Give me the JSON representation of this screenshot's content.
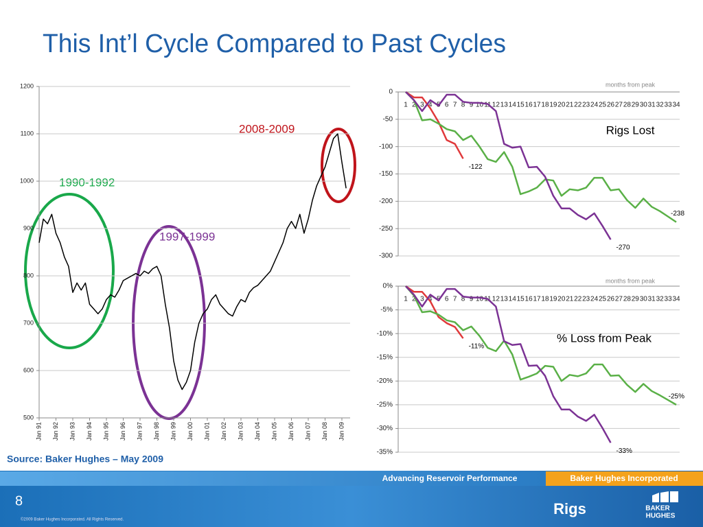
{
  "title": "This Int’l Cycle Compared to Past Cycles",
  "source": "Source: Baker Hughes – May 2009",
  "footer": {
    "tagline": "Advancing Reservoir Performance",
    "company": "Baker Hughes Incorporated",
    "slide_number": "8",
    "copyright": "©2009 Baker Hughes Incorporated. All Rights Reserved.",
    "section": "Rigs",
    "logo": [
      "BAKER",
      "HUGHES"
    ]
  },
  "chart_data": [
    {
      "type": "line",
      "annotations": [
        "1990-1992",
        "1997-1999",
        "2008-2009"
      ],
      "categories": [
        "Jan 91",
        null,
        null,
        null,
        "Jan 92",
        null,
        null,
        null,
        "Jan 93",
        null,
        null,
        null,
        "Jan 94",
        null,
        null,
        null,
        "Jan 95",
        null,
        null,
        null,
        "Jan 96",
        null,
        null,
        null,
        "Jan 97",
        null,
        null,
        null,
        "Jan 98",
        null,
        null,
        null,
        "Jan 99",
        null,
        null,
        null,
        "Jan 00",
        null,
        null,
        null,
        "Jan 01",
        null,
        null,
        null,
        "Jan 02",
        null,
        null,
        null,
        "Jan 03",
        null,
        null,
        null,
        "Jan 04",
        null,
        null,
        null,
        "Jan 05",
        null,
        null,
        null,
        "Jan 06",
        null,
        null,
        null,
        "Jan 07",
        null,
        null,
        null,
        "Jan 08",
        null,
        null,
        null,
        "Jan 09",
        null
      ],
      "series": [
        {
          "color": "#000000",
          "values": [
            870,
            920,
            910,
            930,
            890,
            870,
            840,
            820,
            765,
            785,
            770,
            785,
            740,
            730,
            720,
            730,
            750,
            760,
            755,
            770,
            790,
            795,
            800,
            805,
            800,
            810,
            805,
            815,
            820,
            800,
            740,
            690,
            620,
            580,
            560,
            575,
            600,
            660,
            700,
            720,
            730,
            750,
            760,
            740,
            730,
            720,
            715,
            735,
            750,
            745,
            765,
            775,
            780,
            790,
            800,
            810,
            830,
            850,
            870,
            900,
            915,
            900,
            930,
            890,
            920,
            960,
            990,
            1010,
            1030,
            1060,
            1090,
            1100,
            1040,
            985
          ]
        }
      ],
      "ylim": [
        500,
        1200
      ],
      "yticks": [
        500,
        600,
        700,
        800,
        900,
        1000,
        1100,
        1200
      ],
      "grid": true
    },
    {
      "type": "line",
      "title": "Rigs Lost",
      "x_label": "months from peak",
      "categories": [
        1,
        2,
        3,
        4,
        5,
        6,
        7,
        8,
        9,
        10,
        11,
        12,
        13,
        14,
        15,
        16,
        17,
        18,
        19,
        20,
        21,
        22,
        23,
        24,
        25,
        26,
        27,
        28,
        29,
        30,
        31,
        32,
        33,
        34
      ],
      "series": [
        {
          "color": "#e0393b",
          "values": [
            0,
            -10,
            -10,
            -30,
            -55,
            -88,
            -95,
            -122,
            null,
            null,
            null,
            null,
            null,
            null,
            null,
            null,
            null,
            null,
            null,
            null,
            null,
            null,
            null,
            null,
            null,
            null,
            null,
            null,
            null,
            null,
            null,
            null,
            null,
            null
          ]
        },
        {
          "color": "#5ab047",
          "values": [
            0,
            -15,
            -52,
            -50,
            -58,
            -68,
            -72,
            -88,
            -80,
            -100,
            -123,
            -128,
            -110,
            -137,
            -187,
            -182,
            -175,
            -160,
            -162,
            -190,
            -178,
            -180,
            -175,
            -157,
            -157,
            -180,
            -178,
            -198,
            -212,
            -195,
            -210,
            -218,
            -228,
            -238
          ]
        },
        {
          "color": "#7b3294",
          "values": [
            0,
            -15,
            -35,
            -15,
            -25,
            -5,
            -5,
            -18,
            -20,
            -20,
            -22,
            -35,
            -95,
            -102,
            -100,
            -138,
            -137,
            -155,
            -190,
            -213,
            -213,
            -225,
            -233,
            -222,
            -245,
            -270,
            null,
            null,
            null,
            null,
            null,
            null,
            null,
            null
          ]
        }
      ],
      "ylim": [
        -300,
        0
      ],
      "yticks": [
        0,
        -50,
        -100,
        -150,
        -200,
        -250,
        -300
      ],
      "grid": true
    },
    {
      "type": "line",
      "title": "% Loss from Peak",
      "x_label": "months from peak",
      "categories": [
        1,
        2,
        3,
        4,
        5,
        6,
        7,
        8,
        9,
        10,
        11,
        12,
        13,
        14,
        15,
        16,
        17,
        18,
        19,
        20,
        21,
        22,
        23,
        24,
        25,
        26,
        27,
        28,
        29,
        30,
        31,
        32,
        33,
        34
      ],
      "series": [
        {
          "color": "#e0393b",
          "end_label": "-11%",
          "values": [
            0,
            -1.2,
            -1.2,
            -3.2,
            -6.5,
            -7.8,
            -8.6,
            -11,
            null,
            null,
            null,
            null,
            null,
            null,
            null,
            null,
            null,
            null,
            null,
            null,
            null,
            null,
            null,
            null,
            null,
            null,
            null,
            null,
            null,
            null,
            null,
            null,
            null,
            null
          ]
        },
        {
          "color": "#5ab047",
          "end_label": "-25%",
          "values": [
            0,
            -2,
            -5.5,
            -5.3,
            -6,
            -7.2,
            -7.6,
            -9.3,
            -8.5,
            -10.5,
            -13,
            -13.7,
            -11.5,
            -14.4,
            -19.7,
            -19.1,
            -18.4,
            -16.8,
            -17,
            -20,
            -18.7,
            -19,
            -18.4,
            -16.5,
            -16.5,
            -18.9,
            -18.8,
            -20.8,
            -22.3,
            -20.6,
            -22.1,
            -23,
            -24,
            -25
          ]
        },
        {
          "color": "#7b3294",
          "end_label": "-33%",
          "values": [
            0,
            -1.8,
            -4.3,
            -1.8,
            -3,
            -0.6,
            -0.6,
            -2.2,
            -2.4,
            -2.4,
            -2.7,
            -4.3,
            -11.6,
            -12.4,
            -12.2,
            -16.8,
            -16.7,
            -18.9,
            -23.2,
            -26,
            -26,
            -27.5,
            -28.4,
            -27.1,
            -29.9,
            -33,
            null,
            null,
            null,
            null,
            null,
            null,
            null,
            null
          ]
        }
      ],
      "ylim": [
        -35,
        0
      ],
      "yticks": [
        {
          "value": 0,
          "label": "0%"
        },
        {
          "value": -5,
          "label": "-5%"
        },
        {
          "value": -10,
          "label": "-10%"
        },
        {
          "value": -15,
          "label": "-15%"
        },
        {
          "value": -20,
          "label": "-20%"
        },
        {
          "value": -25,
          "label": "-25%"
        },
        {
          "value": -30,
          "label": "-30%"
        },
        {
          "value": -35,
          "label": "-35%"
        }
      ],
      "grid": true
    }
  ]
}
